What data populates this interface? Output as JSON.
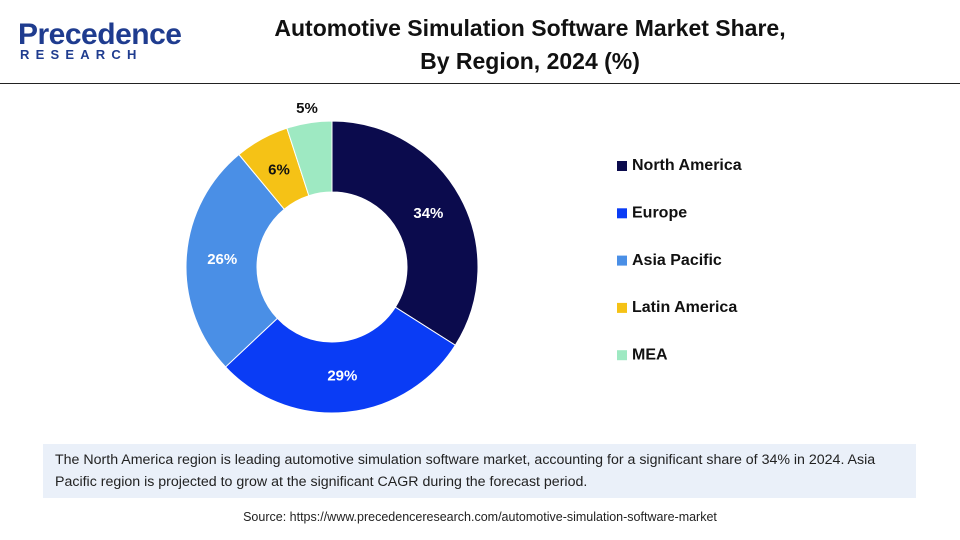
{
  "logo": {
    "name": "Precedence",
    "tagline": "RESEARCH"
  },
  "chart_data": {
    "type": "donut",
    "title": "Automotive Simulation Software Market Share,\nBy Region, 2024 (%)",
    "categories": [
      "North America",
      "Europe",
      "Asia Pacific",
      "Latin America",
      "MEA"
    ],
    "values": [
      34,
      29,
      26,
      6,
      5
    ],
    "value_labels": [
      "34%",
      "29%",
      "26%",
      "6%",
      "5%"
    ],
    "colors": [
      "#0b0b4d",
      "#0a3cf5",
      "#4a8fe6",
      "#f5c216",
      "#9ee9c2"
    ],
    "legend": "right"
  },
  "description": "The North America region is leading automotive simulation software market, accounting for a significant share of 34% in 2024. Asia Pacific region is projected to grow at the significant CAGR during the forecast period.",
  "source": "Source: https://www.precedenceresearch.com/automotive-simulation-software-market"
}
